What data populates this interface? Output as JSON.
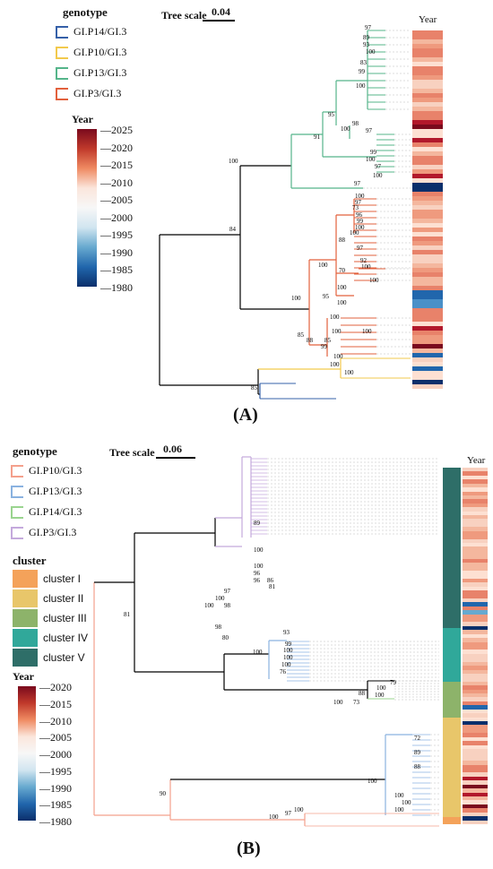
{
  "panelA": {
    "label": "(A)",
    "legend_title": "genotype",
    "genotypes": [
      {
        "name": "GI.P14/GI.3",
        "color": "#3560a8"
      },
      {
        "name": "GI.P10/GI.3",
        "color": "#f2c94c"
      },
      {
        "name": "GI.P13/GI.3",
        "color": "#55b58a"
      },
      {
        "name": "GI.P3/GI.3",
        "color": "#e2603c"
      }
    ],
    "colorbar_title": "Year",
    "colorbar_ticks": [
      "2025",
      "2020",
      "2015",
      "2010",
      "2005",
      "2000",
      "1995",
      "1990",
      "1985",
      "1980"
    ],
    "tree_scale_label": "Tree scale",
    "tree_scale_value": "0.04",
    "year_header": "Year",
    "bootstrap": [
      "97",
      "89",
      "93",
      "100",
      "83",
      "99",
      "82",
      "100",
      "100",
      "95",
      "98",
      "100",
      "97",
      "91",
      "99",
      "100",
      "97",
      "100",
      "100",
      "97",
      "84",
      "100",
      "97",
      "73",
      "96",
      "99",
      "100",
      "100",
      "88",
      "100",
      "97",
      "92",
      "100",
      "70",
      "100",
      "100",
      "95",
      "100",
      "100",
      "100",
      "88",
      "100",
      "85",
      "99",
      "100",
      "85",
      "100",
      "100",
      "100"
    ]
  },
  "panelB": {
    "label": "(B)",
    "legend_title": "genotype",
    "genotypes": [
      {
        "name": "GI.P10/GI.3",
        "color": "#f4a08c"
      },
      {
        "name": "GI.P13/GI.3",
        "color": "#8ab2e0"
      },
      {
        "name": "GI.P14/GI.3",
        "color": "#9ad48f"
      },
      {
        "name": "GI.P3/GI.3",
        "color": "#c4a9dc"
      }
    ],
    "cluster_title": "cluster",
    "clusters": [
      {
        "name": "cluster I",
        "color": "#f4a25a"
      },
      {
        "name": "cluster II",
        "color": "#e8c66a"
      },
      {
        "name": "cluster III",
        "color": "#8db36a"
      },
      {
        "name": "cluster IV",
        "color": "#30a89a"
      },
      {
        "name": "cluster V",
        "color": "#2e6e68"
      }
    ],
    "colorbar_title": "Year",
    "colorbar_ticks": [
      "2020",
      "2015",
      "2010",
      "2005",
      "2000",
      "1995",
      "1990",
      "1985",
      "1980"
    ],
    "tree_scale_label": "Tree scale",
    "tree_scale_value": "0.06",
    "year_header": "Year",
    "bootstrap": [
      "89",
      "100",
      "100",
      "96",
      "96",
      "86",
      "81",
      "97",
      "100",
      "100",
      "98",
      "98",
      "80",
      "93",
      "99",
      "100",
      "100",
      "100",
      "100",
      "76",
      "81",
      "79",
      "100",
      "88",
      "100",
      "73",
      "100",
      "72",
      "89",
      "88",
      "100",
      "100",
      "100",
      "100",
      "90",
      "100",
      "97",
      "100"
    ]
  },
  "colors": {
    "black": "#000000",
    "dashed": "#bdbdbd"
  }
}
